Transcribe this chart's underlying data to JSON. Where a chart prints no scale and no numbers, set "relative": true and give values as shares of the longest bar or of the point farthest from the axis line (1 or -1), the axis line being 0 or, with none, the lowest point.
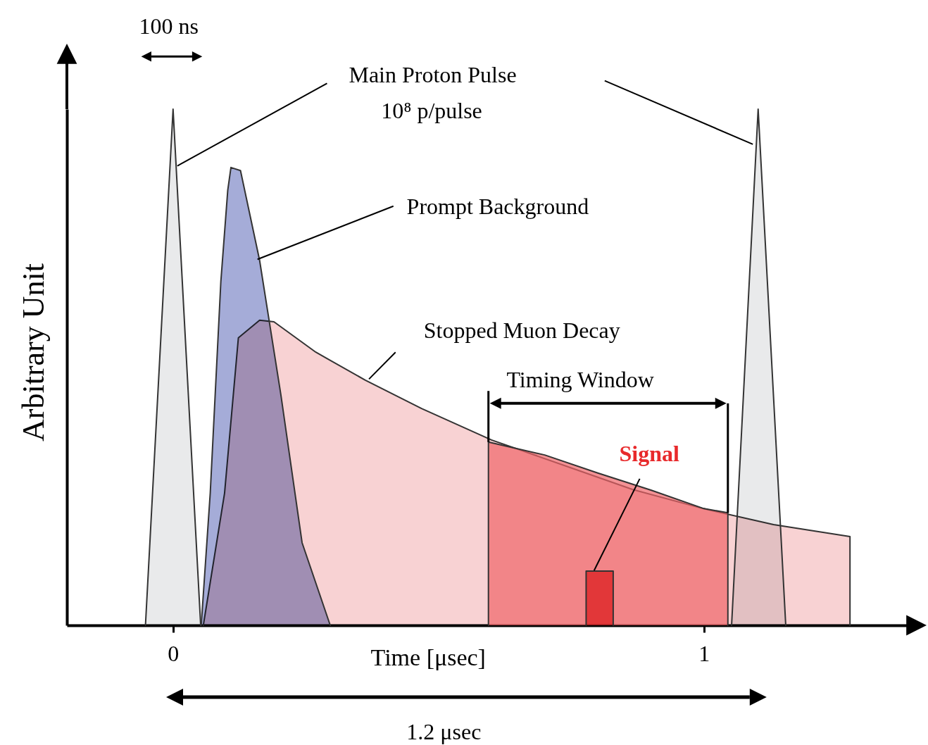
{
  "chart_data": {
    "type": "area",
    "relative": true,
    "xlabel": "Time [μsec]",
    "ylabel": "Arbitrary Unit",
    "xlim": [
      -0.2,
      1.41
    ],
    "xticks": [
      0,
      1
    ],
    "grid": false,
    "annotations": [
      "10⁸ p/pulse",
      "Timing Window",
      "100 ns",
      "1.2 μsec"
    ],
    "series": [
      {
        "name": "Stopped Muon Decay",
        "color": "#f5bfc0",
        "x": [
          0.057,
          0.097,
          0.123,
          0.163,
          0.19,
          0.269,
          0.362,
          0.468,
          0.6,
          0.733,
          0.866,
          0.999,
          1.131,
          1.275,
          1.275
        ],
        "values": [
          0,
          0.256,
          0.557,
          0.591,
          0.588,
          0.529,
          0.475,
          0.42,
          0.359,
          0.311,
          0.263,
          0.226,
          0.195,
          0.172,
          0
        ]
      },
      {
        "color": "#ef6468",
        "x": [
          0.594,
          0.594,
          0.7,
          0.8,
          0.9,
          1.0,
          1.045,
          1.045
        ],
        "values": [
          0,
          0.355,
          0.33,
          0.295,
          0.262,
          0.226,
          0.218,
          0
        ]
      },
      {
        "name": "Prompt Background",
        "color": "#7f88c8",
        "x": [
          0.053,
          0.07,
          0.09,
          0.103,
          0.109,
          0.127,
          0.163,
          0.203,
          0.243,
          0.296
        ],
        "values": [
          0,
          0.256,
          0.666,
          0.843,
          0.887,
          0.881,
          0.707,
          0.447,
          0.16,
          0
        ]
      },
      {
        "name": "Main Proton Pulse",
        "color": "#e0e1e3",
        "x": [
          -0.052,
          0,
          0.052,
          0.6,
          1.052,
          1.102,
          1.154
        ],
        "values": [
          0,
          1,
          0,
          null,
          0,
          1,
          0
        ]
      },
      {
        "name": "Signal",
        "color": "#e8292b",
        "x": [
          0.778,
          0.778,
          0.829,
          0.829
        ],
        "values": [
          0,
          0.105,
          0.105,
          0
        ]
      }
    ]
  }
}
